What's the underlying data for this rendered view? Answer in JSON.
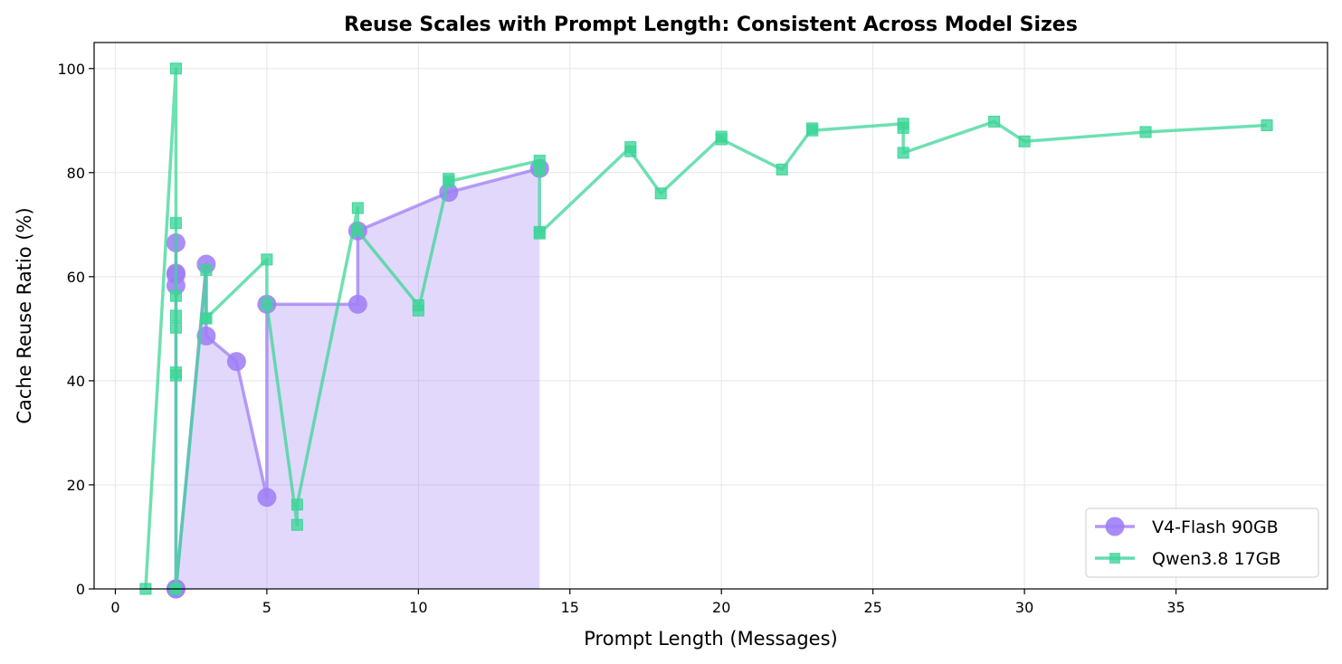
{
  "chart_data": {
    "type": "line",
    "title": "Reuse Scales with Prompt Length: Consistent Across Model Sizes",
    "xlabel": "Prompt Length (Messages)",
    "ylabel": "Cache Reuse Ratio (%)",
    "xlim": [
      -0.7,
      40.0
    ],
    "ylim": [
      0,
      105
    ],
    "xticks": [
      0,
      5,
      10,
      15,
      20,
      25,
      30,
      35
    ],
    "yticks": [
      0,
      20,
      40,
      60,
      80,
      100
    ],
    "grid": true,
    "legend_position": "bottom-right",
    "series": [
      {
        "name": "V4-Flash 90GB",
        "color": "#9f7ef5",
        "marker": "circle",
        "fill_under": true,
        "x": [
          2,
          2,
          2,
          2,
          2,
          2,
          3,
          3,
          4,
          5,
          5,
          8,
          8,
          11,
          14
        ],
        "y": [
          0,
          58.3,
          60.4,
          60.7,
          66.5,
          0,
          62.4,
          48.6,
          43.7,
          17.6,
          54.7,
          54.7,
          68.8,
          76.2,
          80.8
        ]
      },
      {
        "name": "Qwen3.8 17GB",
        "color": "#3dd598",
        "marker": "square",
        "fill_under": false,
        "x": [
          1,
          2,
          2,
          2,
          2,
          2,
          2,
          2,
          2,
          2,
          3,
          3,
          3,
          5,
          5,
          6,
          6,
          8,
          8,
          10,
          10,
          11,
          11,
          14,
          14,
          14,
          14,
          17,
          17,
          18,
          20,
          20,
          22,
          23,
          23,
          26,
          26,
          26,
          29,
          30,
          34,
          38
        ],
        "y": [
          0,
          100,
          70.3,
          56.3,
          52.5,
          50.2,
          41.6,
          41.0,
          0,
          0,
          61.3,
          52.0,
          52.0,
          63.3,
          54.7,
          12.3,
          16.2,
          73.2,
          68.8,
          54.5,
          53.5,
          78.8,
          78.3,
          82.3,
          80.6,
          68.6,
          68.3,
          84.9,
          84.1,
          76.0,
          86.9,
          86.4,
          80.6,
          88.5,
          88.1,
          89.4,
          88.6,
          83.8,
          89.8,
          86.0,
          87.8,
          89.1
        ]
      }
    ]
  }
}
